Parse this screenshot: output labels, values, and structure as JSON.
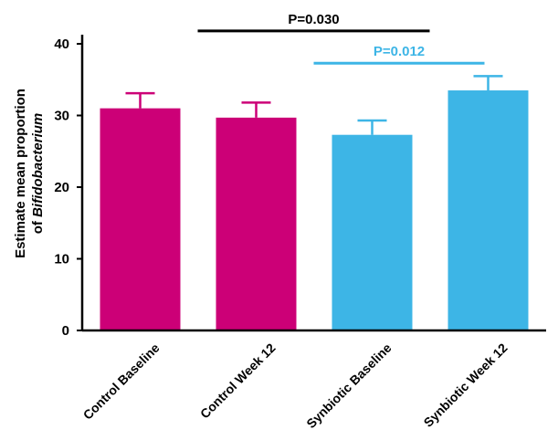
{
  "chart_data": {
    "type": "bar",
    "categories": [
      "Control Baseline",
      "Control Week 12",
      "Synbiotic Baseline",
      "Synbiotic Week 12"
    ],
    "values": [
      31.0,
      29.7,
      27.3,
      33.5
    ],
    "error_upper": [
      33.1,
      31.8,
      29.3,
      35.5
    ],
    "bar_colors": [
      "#cc0077",
      "#cc0077",
      "#3db5e6",
      "#3db5e6"
    ],
    "ylabel_line1": "Estimate mean proportion",
    "ylabel_line2_prefix": "of ",
    "ylabel_line2_italic": "Bifidobacterium",
    "ylim": [
      0,
      42
    ],
    "yticks": [
      0,
      10,
      20,
      30,
      40
    ],
    "grid": false,
    "annotations": [
      {
        "text": "P=0.030",
        "from_category": 1,
        "to_category": 3,
        "level": 41.8,
        "color": "#000000"
      },
      {
        "text": "P=0.012",
        "from_category": 2,
        "to_category": 3,
        "level": 37.3,
        "color": "#3db5e6"
      }
    ]
  }
}
